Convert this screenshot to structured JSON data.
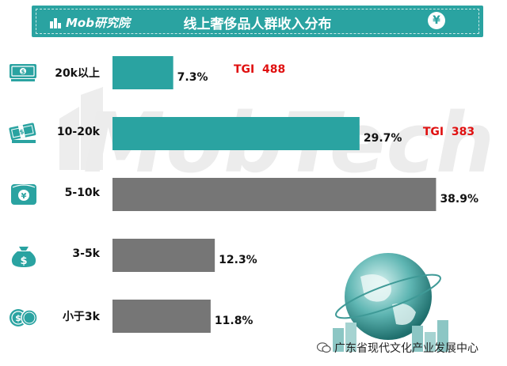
{
  "header": {
    "logo_text": "Mob研究院",
    "title": "线上奢侈品人群收入分布",
    "currency_symbol": "¥"
  },
  "watermark_text": "MobTech",
  "footer": {
    "account_name": "广东省现代文化产业发展中心"
  },
  "colors": {
    "teal": "#2aa3a1",
    "gray": "#767676",
    "tgi_red": "#e01010"
  },
  "chart_data": {
    "type": "bar",
    "orientation": "horizontal",
    "categories": [
      "20k以上",
      "10-20k",
      "5-10k",
      "3-5k",
      "小于3k"
    ],
    "values": [
      7.3,
      29.7,
      38.9,
      12.3,
      11.8
    ],
    "value_labels": [
      "7.3%",
      "29.7%",
      "38.9%",
      "12.3%",
      "11.8%"
    ],
    "bar_colors": [
      "#2aa3a1",
      "#2aa3a1",
      "#767676",
      "#767676",
      "#767676"
    ],
    "tgi_labels": [
      "TGI  488",
      "TGI  383",
      "",
      "",
      ""
    ],
    "category_icons": [
      "banknote-stack-icon",
      "money-bundle-icon",
      "yuan-wallet-icon",
      "money-bag-icon",
      "coins-icon"
    ],
    "unit": "%"
  }
}
